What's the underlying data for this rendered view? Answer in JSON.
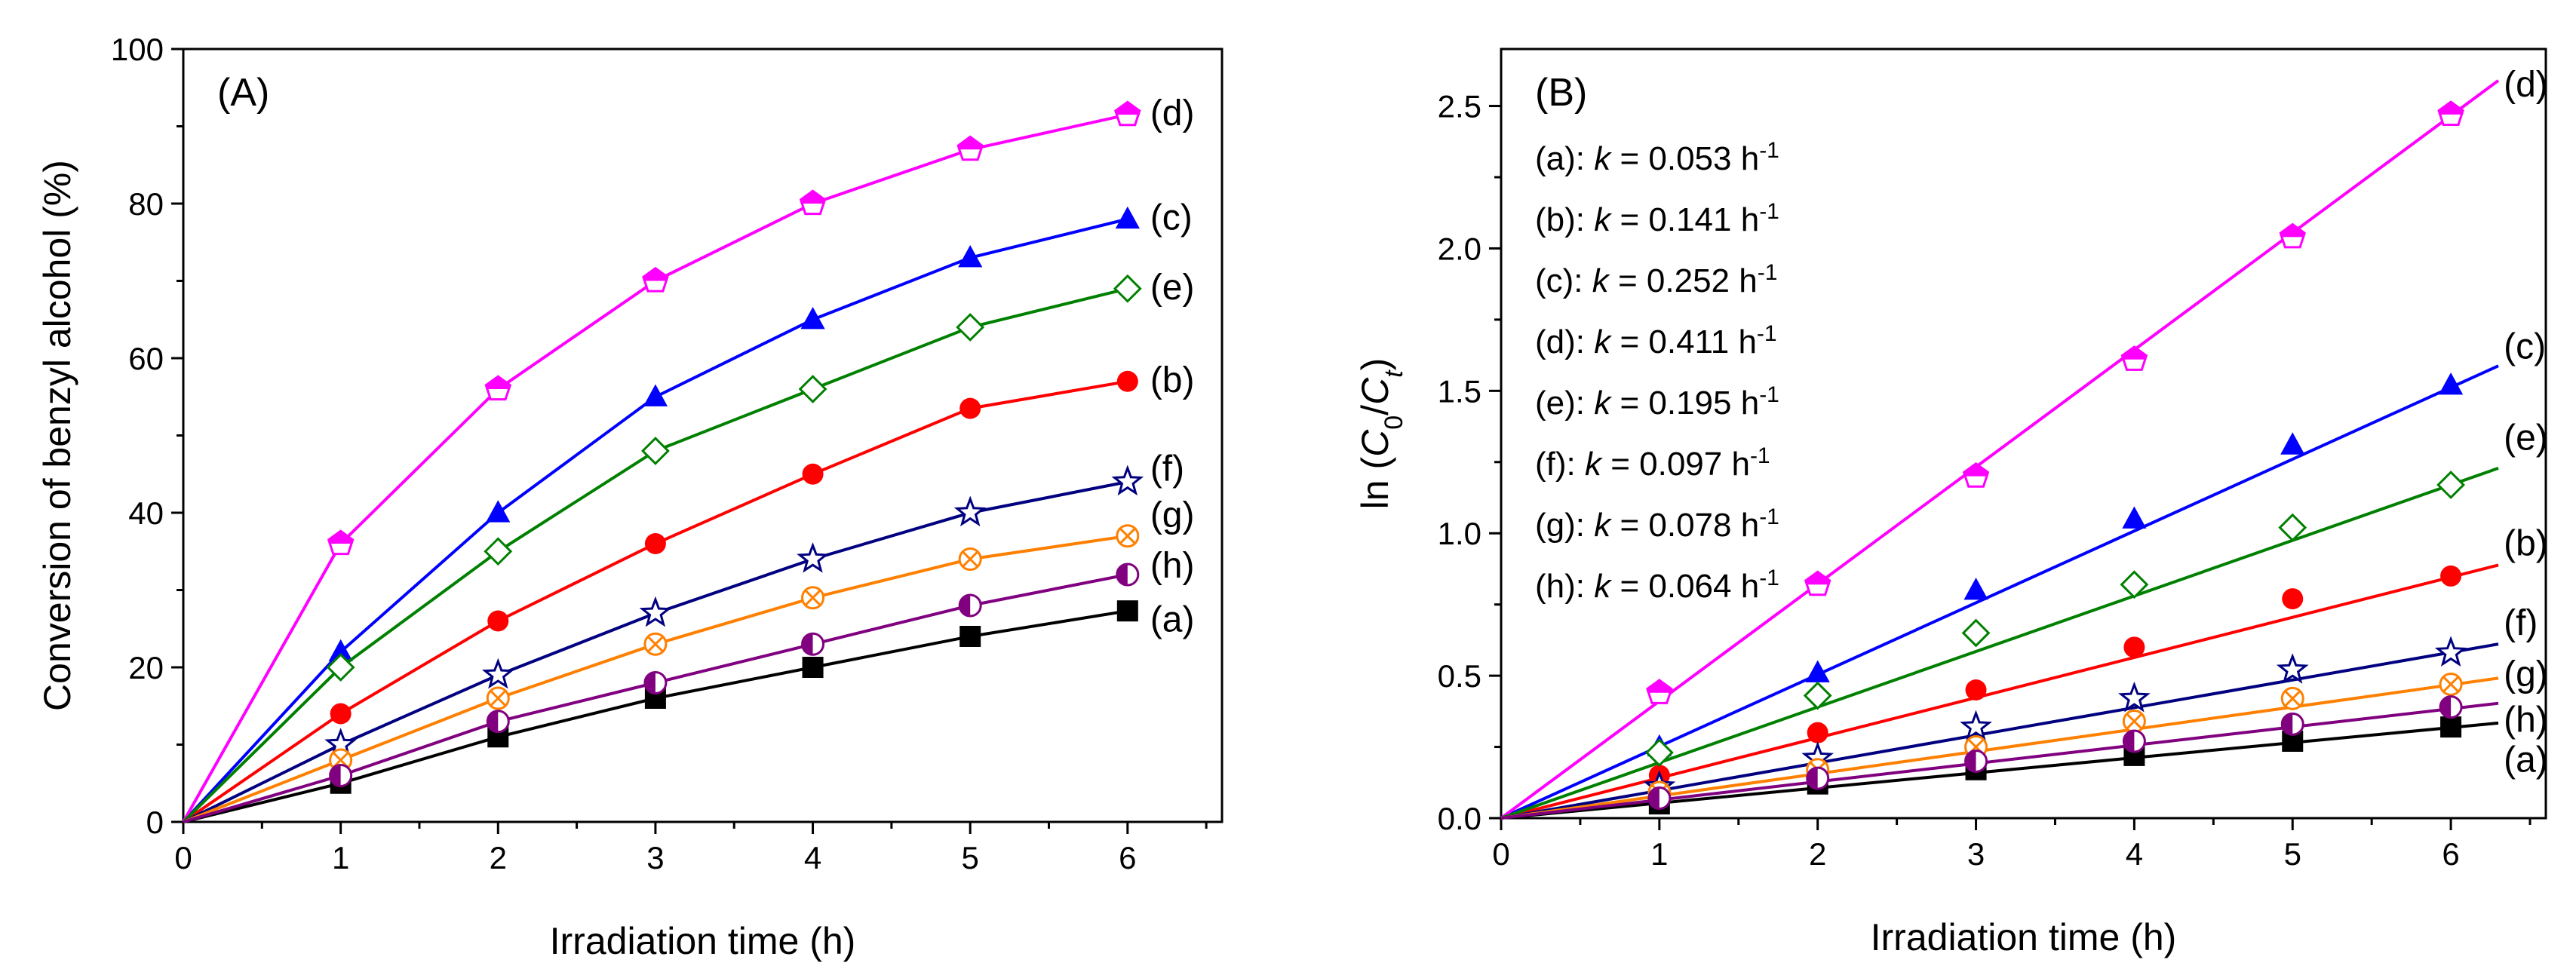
{
  "chart_data": [
    {
      "type": "line",
      "panel_label": "(A)",
      "xlabel": "Irradiation time (h)",
      "ylabel": "Conversion of benzyl alcohol (%)",
      "xlim": [
        0,
        6.6
      ],
      "ylim": [
        0,
        100
      ],
      "x_ticks": [
        0,
        1,
        2,
        3,
        4,
        5,
        6
      ],
      "y_ticks": [
        0,
        20,
        40,
        60,
        80,
        100
      ],
      "x": [
        0,
        1,
        2,
        3,
        4,
        5,
        6
      ],
      "series": [
        {
          "name": "(a)",
          "color": "#000000",
          "marker": "square-filled",
          "values": [
            0,
            5,
            11,
            16,
            20,
            24,
            27.3
          ]
        },
        {
          "name": "(b)",
          "color": "#ff0000",
          "marker": "circle-filled",
          "values": [
            0,
            14,
            26,
            36,
            45,
            53.5,
            57
          ]
        },
        {
          "name": "(c)",
          "color": "#0000ff",
          "marker": "triangle-filled",
          "values": [
            0,
            22,
            40,
            55,
            65,
            73,
            78
          ]
        },
        {
          "name": "(d)",
          "color": "#ff00ff",
          "marker": "pentagon-half",
          "values": [
            0,
            36,
            56,
            70,
            80,
            87,
            91.5
          ]
        },
        {
          "name": "(e)",
          "color": "#008000",
          "marker": "diamond-open",
          "values": [
            0,
            20,
            35,
            48,
            56,
            64,
            69
          ]
        },
        {
          "name": "(f)",
          "color": "#000080",
          "marker": "star-open",
          "values": [
            0,
            10,
            19,
            27,
            34,
            40,
            44
          ]
        },
        {
          "name": "(g)",
          "color": "#ff8000",
          "marker": "circle-x",
          "values": [
            0,
            8,
            16,
            23,
            29,
            34,
            37
          ]
        },
        {
          "name": "(h)",
          "color": "#800080",
          "marker": "circle-half",
          "values": [
            0,
            6,
            13,
            18,
            23,
            28,
            32
          ]
        }
      ]
    },
    {
      "type": "scatter",
      "panel_label": "(B)",
      "xlabel": "Irradiation time (h)",
      "ylabel": "ln (C0/Ct)",
      "ylabel_parts": {
        "pre": "ln (",
        "c": "C",
        "sub0": "0",
        "slash": "/",
        "sub_t": "t",
        "post": ")"
      },
      "xlim": [
        0,
        6.6
      ],
      "ylim": [
        0,
        2.7
      ],
      "x_ticks": [
        0,
        1,
        2,
        3,
        4,
        5,
        6
      ],
      "y_ticks": [
        "0.0",
        "0.5",
        "1.0",
        "1.5",
        "2.0",
        "2.5"
      ],
      "x": [
        1,
        2,
        3,
        4,
        5,
        6
      ],
      "fit_x_range": [
        0,
        6.3
      ],
      "series": [
        {
          "name": "(a)",
          "color": "#000000",
          "marker": "square-filled",
          "k": 0.053,
          "values": [
            0.05,
            0.12,
            0.17,
            0.22,
            0.27,
            0.32
          ]
        },
        {
          "name": "(b)",
          "color": "#ff0000",
          "marker": "circle-filled",
          "k": 0.141,
          "values": [
            0.15,
            0.3,
            0.45,
            0.6,
            0.77,
            0.85
          ]
        },
        {
          "name": "(c)",
          "color": "#0000ff",
          "marker": "triangle-filled",
          "k": 0.252,
          "values": [
            0.25,
            0.51,
            0.8,
            1.05,
            1.31,
            1.52
          ]
        },
        {
          "name": "(d)",
          "color": "#ff00ff",
          "marker": "pentagon-half",
          "k": 0.411,
          "values": [
            0.44,
            0.82,
            1.2,
            1.61,
            2.04,
            2.47
          ]
        },
        {
          "name": "(e)",
          "color": "#008000",
          "marker": "diamond-open",
          "k": 0.195,
          "values": [
            0.23,
            0.43,
            0.65,
            0.82,
            1.02,
            1.17
          ]
        },
        {
          "name": "(f)",
          "color": "#000080",
          "marker": "star-open",
          "k": 0.097,
          "values": [
            0.11,
            0.21,
            0.32,
            0.42,
            0.52,
            0.58
          ]
        },
        {
          "name": "(g)",
          "color": "#ff8000",
          "marker": "circle-x",
          "k": 0.078,
          "values": [
            0.09,
            0.17,
            0.25,
            0.34,
            0.42,
            0.47
          ]
        },
        {
          "name": "(h)",
          "color": "#800080",
          "marker": "circle-half",
          "k": 0.064,
          "values": [
            0.07,
            0.14,
            0.2,
            0.27,
            0.33,
            0.39
          ]
        }
      ],
      "annotations": [
        {
          "prefix": "(a): ",
          "k_label": "k",
          "value": " = 0.053 h",
          "exp": "-1"
        },
        {
          "prefix": "(b): ",
          "k_label": "k",
          "value": " = 0.141 h",
          "exp": "-1"
        },
        {
          "prefix": "(c): ",
          "k_label": "k",
          "value": " = 0.252 h",
          "exp": "-1"
        },
        {
          "prefix": "(d): ",
          "k_label": "k",
          "value": " = 0.411 h",
          "exp": "-1"
        },
        {
          "prefix": "(e): ",
          "k_label": "k",
          "value": " = 0.195 h",
          "exp": "-1"
        },
        {
          "prefix": "(f): ",
          "k_label": "k",
          "value": " = 0.097 h",
          "exp": "-1"
        },
        {
          "prefix": "(g): ",
          "k_label": "k",
          "value": " = 0.078 h",
          "exp": "-1"
        },
        {
          "prefix": "(h): ",
          "k_label": "k",
          "value": " = 0.064 h",
          "exp": "-1"
        }
      ]
    }
  ]
}
